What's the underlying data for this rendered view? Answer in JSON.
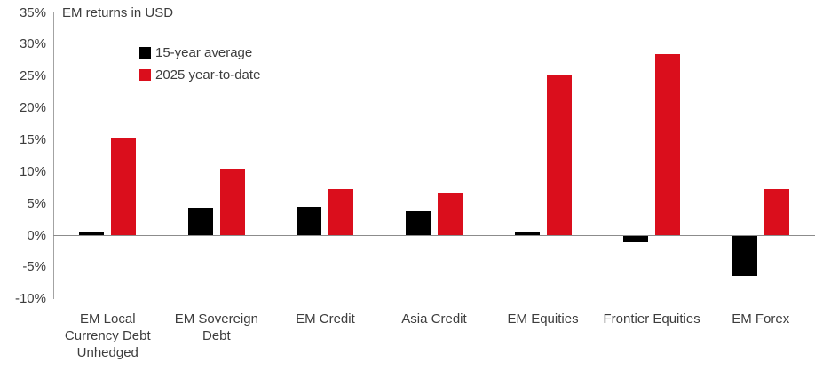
{
  "chart_data": {
    "type": "bar",
    "title": "EM returns in USD",
    "categories": [
      "EM Local Currency Debt Unhedged",
      "EM Sovereign Debt",
      "EM Credit",
      "Asia Credit",
      "EM Equities",
      "Frontier Equities",
      "EM Forex"
    ],
    "category_label_lines": [
      [
        "EM Local",
        "Currency Debt",
        "Unhedged"
      ],
      [
        "EM Sovereign",
        "Debt"
      ],
      [
        "EM Credit"
      ],
      [
        "Asia Credit"
      ],
      [
        "EM Equities"
      ],
      [
        "Frontier Equities"
      ],
      [
        "EM Forex"
      ]
    ],
    "series": [
      {
        "name": "15-year average",
        "color": "#000000",
        "values": [
          0.6,
          4.3,
          4.4,
          3.8,
          0.6,
          -1.0,
          -6.3
        ]
      },
      {
        "name": "2025 year-to-date",
        "color": "#da0e1c",
        "values": [
          15.3,
          10.5,
          7.2,
          6.7,
          25.2,
          28.5,
          7.2
        ]
      }
    ],
    "ylim": [
      -10,
      35
    ],
    "ytick_step": 5,
    "yticks": [
      {
        "label": "35%",
        "value": 35
      },
      {
        "label": "30%",
        "value": 30
      },
      {
        "label": "25%",
        "value": 25
      },
      {
        "label": "20%",
        "value": 20
      },
      {
        "label": "15%",
        "value": 15
      },
      {
        "label": "10%",
        "value": 10
      },
      {
        "label": "5%",
        "value": 5
      },
      {
        "label": "0%",
        "value": 0
      },
      {
        "label": "-5%",
        "value": -5
      },
      {
        "label": "-10%",
        "value": -10
      }
    ],
    "grid": false,
    "legend_position": "inside-top-left"
  },
  "colors": {
    "background": "#ffffff",
    "text": "#3d3d3d",
    "axis_line": "#a3a3a3",
    "zero_line": "#8c8c8c",
    "series_black": "#000000",
    "series_red": "#da0e1c"
  }
}
